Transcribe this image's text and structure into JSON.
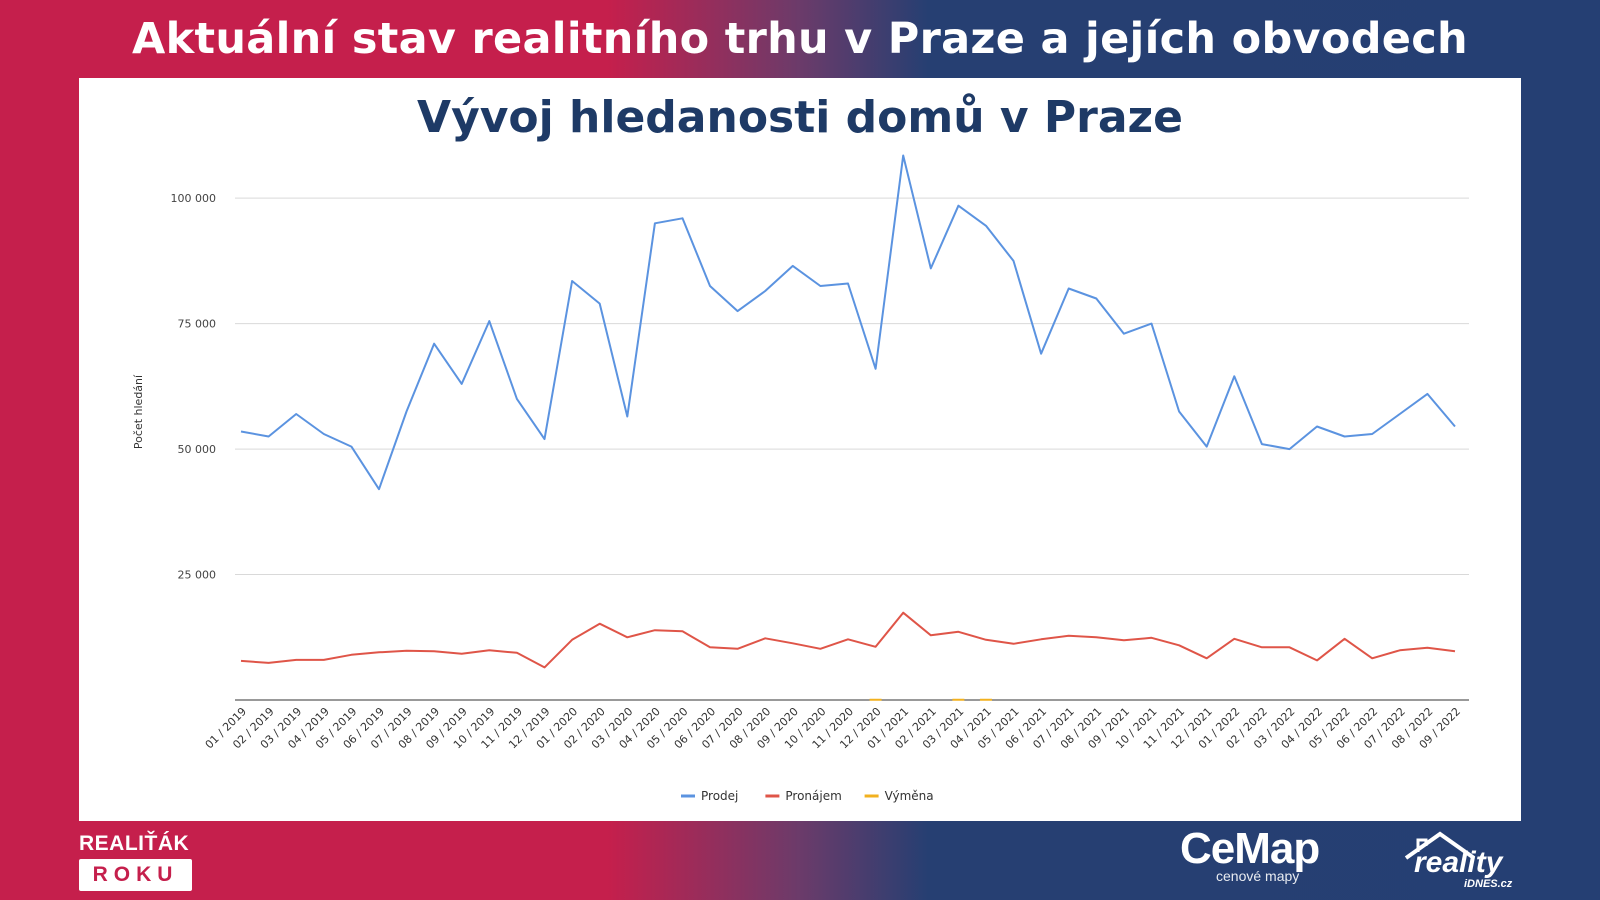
{
  "banner": {
    "title": "Aktuální stav realitního trhu v Praze a jejích obvodech"
  },
  "chart_data": {
    "type": "line",
    "title": "Vývoj hledanosti domů v Praze",
    "xlabel": "",
    "ylabel": "Počet hledání",
    "ylim": [
      0,
      110000
    ],
    "yticks": [
      {
        "value": 25000,
        "label": "25 000"
      },
      {
        "value": 50000,
        "label": "50 000"
      },
      {
        "value": 75000,
        "label": "75 000"
      },
      {
        "value": 100000,
        "label": "100 000"
      }
    ],
    "grid": true,
    "legend_position": "bottom",
    "categories": [
      "01 / 2019",
      "02 / 2019",
      "03 / 2019",
      "04 / 2019",
      "05 / 2019",
      "06 / 2019",
      "07 / 2019",
      "08 / 2019",
      "09 / 2019",
      "10 / 2019",
      "11 / 2019",
      "12 / 2019",
      "01 / 2020",
      "02 / 2020",
      "03 / 2020",
      "04 / 2020",
      "05 / 2020",
      "06 / 2020",
      "07 / 2020",
      "08 / 2020",
      "09 / 2020",
      "10 / 2020",
      "11 / 2020",
      "12 / 2020",
      "01 / 2021",
      "02 / 2021",
      "03 / 2021",
      "04 / 2021",
      "05 / 2021",
      "06 / 2021",
      "07 / 2021",
      "08 / 2021",
      "09 / 2021",
      "10 / 2021",
      "11 / 2021",
      "12 / 2021",
      "01 / 2022",
      "02 / 2022",
      "03 / 2022",
      "04 / 2022",
      "05 / 2022",
      "06 / 2022",
      "07 / 2022",
      "08 / 2022",
      "09 / 2022"
    ],
    "series": [
      {
        "name": "Prodej",
        "color": "#5b93e0",
        "values": [
          53500,
          52500,
          57000,
          53000,
          50500,
          42000,
          57500,
          71000,
          63000,
          75500,
          60000,
          52000,
          83500,
          79000,
          56500,
          95000,
          96000,
          82500,
          77500,
          81500,
          86500,
          82500,
          83000,
          66000,
          108500,
          86000,
          98500,
          94500,
          87500,
          69000,
          82000,
          80000,
          73000,
          75000,
          57500,
          50500,
          64500,
          51000,
          50000,
          54500,
          52500,
          53000,
          57000,
          61000,
          54500
        ]
      },
      {
        "name": "Pronájem",
        "color": "#df5548",
        "values": [
          7800,
          7400,
          8000,
          8000,
          9000,
          9500,
          9800,
          9700,
          9200,
          9900,
          9400,
          6500,
          12000,
          15200,
          12500,
          13900,
          13700,
          10500,
          10200,
          12300,
          11300,
          10200,
          12100,
          10600,
          17400,
          12900,
          13600,
          12000,
          11200,
          12100,
          12800,
          12500,
          11900,
          12400,
          10900,
          8300,
          12200,
          10500,
          10500,
          7900,
          12200,
          8300,
          9900,
          10400,
          9700
        ]
      },
      {
        "name": "Výměna",
        "color": "#f2b11f",
        "values": [
          0,
          0,
          0,
          0,
          0,
          0,
          0,
          0,
          0,
          0,
          0,
          0,
          0,
          0,
          0,
          0,
          0,
          0,
          0,
          0,
          0,
          0,
          0,
          50,
          0,
          0,
          50,
          50,
          0,
          0,
          0,
          0,
          0,
          0,
          0,
          0,
          0,
          0,
          0,
          0,
          0,
          0,
          0,
          0,
          0
        ]
      }
    ]
  },
  "branding": {
    "left_line1": "REALIŤÁK",
    "left_line2": "ROKU",
    "mid_big": "CeMap",
    "mid_small": "cenové mapy",
    "right_big": "reality",
    "right_small": "iDNES.cz"
  }
}
